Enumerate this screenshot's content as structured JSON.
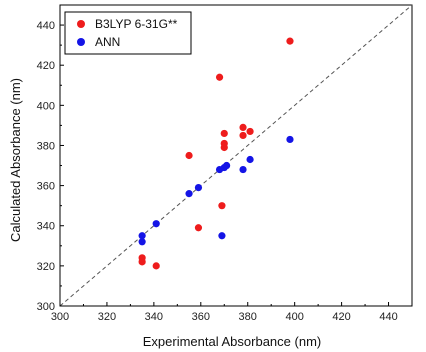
{
  "chart_data": {
    "type": "scatter",
    "title": "",
    "xlabel": "Experimental Absorbance (nm)",
    "ylabel": "Calculated Absorbance (nm)",
    "xlim": [
      300,
      450
    ],
    "ylim": [
      300,
      450
    ],
    "xticks": [
      300,
      320,
      340,
      360,
      380,
      400,
      420,
      440
    ],
    "yticks": [
      300,
      320,
      340,
      360,
      380,
      400,
      420,
      440
    ],
    "grid": false,
    "legend_position": "top-left",
    "reference_line": "y = x (dashed)",
    "series": [
      {
        "name": "B3LYP 6-31G**",
        "color": "#ee1c1c",
        "points": [
          [
            335,
            324
          ],
          [
            335,
            322
          ],
          [
            341,
            320
          ],
          [
            355,
            375
          ],
          [
            359,
            339
          ],
          [
            368,
            414
          ],
          [
            369,
            350
          ],
          [
            370,
            386
          ],
          [
            370,
            381
          ],
          [
            370,
            379
          ],
          [
            378,
            389
          ],
          [
            378,
            385
          ],
          [
            381,
            387
          ],
          [
            398,
            432
          ]
        ]
      },
      {
        "name": "ANN",
        "color": "#1414e6",
        "points": [
          [
            335,
            335
          ],
          [
            335,
            332
          ],
          [
            341,
            341
          ],
          [
            355,
            356
          ],
          [
            359,
            359
          ],
          [
            368,
            368
          ],
          [
            369,
            335
          ],
          [
            370,
            369
          ],
          [
            371,
            370
          ],
          [
            378,
            368
          ],
          [
            381,
            373
          ],
          [
            398,
            383
          ]
        ]
      }
    ]
  }
}
